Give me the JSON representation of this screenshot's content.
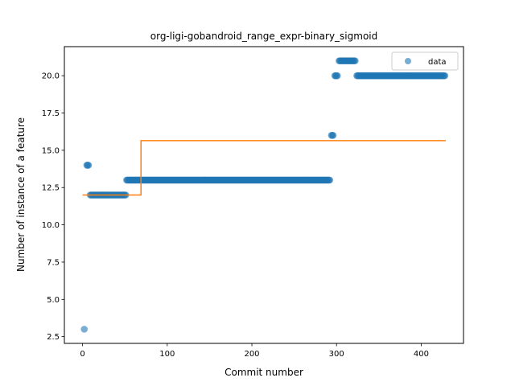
{
  "chart_data": {
    "type": "scatter",
    "title": "org-ligi-gobandroid_range_expr-binary_sigmoid",
    "xlabel": "Commit number",
    "ylabel": "Number of instance of a feature",
    "xlim": [
      -21.5,
      450
    ],
    "ylim": [
      2.05,
      21.95
    ],
    "xticks": [
      0,
      100,
      200,
      300,
      400
    ],
    "yticks": [
      2.5,
      5.0,
      7.5,
      10.0,
      12.5,
      15.0,
      17.5,
      20.0
    ],
    "ytick_labels": [
      "2.5",
      "5.0",
      "7.5",
      "10.0",
      "12.5",
      "15.0",
      "17.5",
      "20.0"
    ],
    "grid": false,
    "legend": {
      "position": "top-right",
      "entries": [
        "data"
      ]
    },
    "colors": {
      "data": "#1f77b4",
      "fit": "#ff7f0e"
    },
    "series": [
      {
        "name": "data",
        "kind": "scatter",
        "segments": [
          {
            "x_start": 2,
            "x_end": 2,
            "y": 3
          },
          {
            "x_start": 5,
            "x_end": 7,
            "y": 14
          },
          {
            "x_start": 9,
            "x_end": 51,
            "y": 12
          },
          {
            "x_start": 52,
            "x_end": 292,
            "y": 13
          },
          {
            "x_start": 294,
            "x_end": 296,
            "y": 16
          },
          {
            "x_start": 298,
            "x_end": 301,
            "y": 20
          },
          {
            "x_start": 303,
            "x_end": 322,
            "y": 21
          },
          {
            "x_start": 324,
            "x_end": 428,
            "y": 20
          }
        ]
      },
      {
        "kind": "line",
        "x": [
          0,
          69,
          69,
          429
        ],
        "y": [
          12.0,
          12.0,
          15.65,
          15.65
        ]
      }
    ]
  }
}
